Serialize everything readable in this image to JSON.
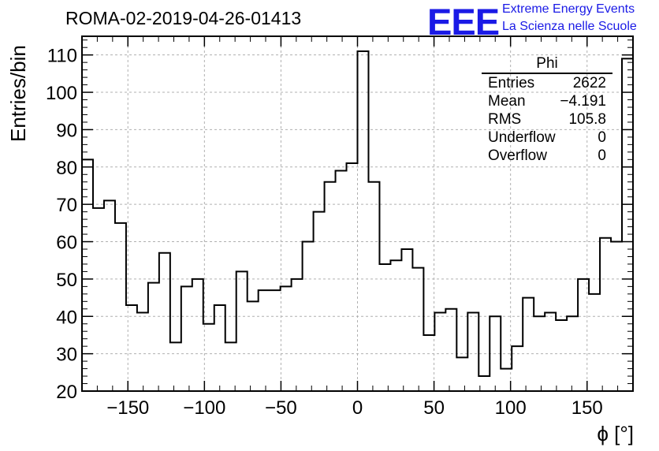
{
  "title": "ROMA-02-2019-04-26-01413",
  "logo": {
    "mark": "EEE",
    "line1": "Extreme Energy Events",
    "line2": "La Scienza nelle Scuole",
    "color": "#1a1ae6"
  },
  "stats": {
    "header": "Phi",
    "rows": [
      {
        "label": "Entries",
        "value": "2622"
      },
      {
        "label": "Mean",
        "value": "−4.191"
      },
      {
        "label": "RMS",
        "value": "105.8"
      },
      {
        "label": "Underflow",
        "value": "0"
      },
      {
        "label": "Overflow",
        "value": "0"
      }
    ]
  },
  "chart_data": {
    "type": "bar",
    "style": "step-histogram",
    "xlabel": "ϕ [°]",
    "ylabel": "Entries/bin",
    "xlim": [
      -180,
      180
    ],
    "ylim": [
      20,
      115
    ],
    "bin_width": 7.2,
    "x_ticks": [
      -150,
      -100,
      -50,
      0,
      50,
      100,
      150
    ],
    "x_tick_labels": [
      "−150",
      "−100",
      "−50",
      "0",
      "50",
      "100",
      "150"
    ],
    "y_ticks": [
      20,
      30,
      40,
      50,
      60,
      70,
      80,
      90,
      100,
      110
    ],
    "y_tick_labels": [
      "20",
      "30",
      "40",
      "50",
      "60",
      "70",
      "80",
      "90",
      "100",
      "110"
    ],
    "grid": true,
    "line_color": "#000000",
    "values": [
      82,
      69,
      71,
      65,
      43,
      41,
      49,
      57,
      33,
      48,
      50,
      38,
      43,
      33,
      52,
      44,
      47,
      47,
      48,
      50,
      60,
      68,
      76,
      79,
      81,
      111,
      76,
      54,
      55,
      58,
      53,
      35,
      41,
      42,
      29,
      41,
      24,
      40,
      26,
      32,
      45,
      40,
      41,
      39,
      40,
      50,
      46,
      61,
      60,
      109
    ]
  }
}
